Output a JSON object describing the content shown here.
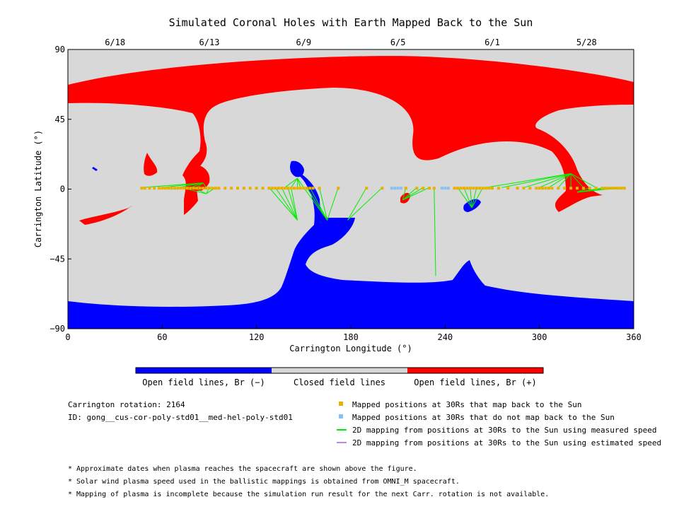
{
  "chart_data": {
    "type": "map",
    "title": "Simulated Coronal Holes with Earth Mapped Back to the Sun",
    "xlabel": "Carrington Longitude (°)",
    "ylabel": "Carrington Latitude (°)",
    "xlim": [
      0,
      360
    ],
    "ylim": [
      -90,
      90
    ],
    "x_ticks": [
      "0",
      "60",
      "120",
      "180",
      "240",
      "300",
      "360"
    ],
    "y_ticks": [
      "90",
      "45",
      "0",
      "-45",
      "-90"
    ],
    "top_date_ticks": [
      {
        "label": "6/18",
        "lon": 30
      },
      {
        "label": "6/13",
        "lon": 90
      },
      {
        "label": "6/9",
        "lon": 150
      },
      {
        "label": "6/5",
        "lon": 210
      },
      {
        "label": "6/1",
        "lon": 270
      },
      {
        "label": "5/28",
        "lon": 330
      }
    ],
    "colors": {
      "open_negative": "#0000ff",
      "closed": "#d8d8d8",
      "open_positive": "#ff0000",
      "mapped": "#e8b100",
      "unmapped": "#88c0f0",
      "measured_line": "#00ee00",
      "estimated_line": "#b88be0"
    },
    "colorbar": {
      "labels": [
        "Open field lines, Br (−)",
        "Closed field lines",
        "Open field lines, Br (+)"
      ]
    },
    "mapped_positions_lon": [
      47,
      49,
      52,
      55,
      58,
      60,
      62,
      64,
      66,
      68,
      70,
      72,
      74,
      76,
      78,
      80,
      82,
      84,
      86,
      88,
      90,
      92,
      94,
      96,
      100,
      104,
      108,
      112,
      116,
      120,
      124,
      128,
      130,
      132,
      134,
      136,
      138,
      140,
      142,
      144,
      146,
      148,
      150,
      152,
      154,
      156,
      160,
      172,
      190,
      200,
      215,
      222,
      226,
      230,
      233,
      246,
      248,
      250,
      252,
      254,
      256,
      258,
      260,
      262,
      264,
      266,
      268,
      270,
      274,
      280,
      286,
      290,
      294,
      298,
      300,
      302,
      304,
      306,
      308,
      312,
      316,
      320,
      324,
      328,
      332,
      336,
      340,
      342,
      344,
      346,
      348,
      350,
      352,
      354
    ],
    "unmapped_positions_lon": [
      206,
      208,
      210,
      212,
      238,
      240,
      242
    ],
    "measured_speed_mappings": [
      {
        "from": [
          47,
          1
        ],
        "to": [
          86,
          4
        ]
      },
      {
        "from": [
          60,
          1
        ],
        "to": [
          86,
          4
        ]
      },
      {
        "from": [
          70,
          1
        ],
        "to": [
          86,
          4
        ]
      },
      {
        "from": [
          78,
          1
        ],
        "to": [
          86,
          4
        ]
      },
      {
        "from": [
          82,
          1
        ],
        "to": [
          86,
          4
        ]
      },
      {
        "from": [
          88,
          1
        ],
        "to": [
          86,
          4
        ]
      },
      {
        "from": [
          72,
          1
        ],
        "to": [
          88,
          -3
        ]
      },
      {
        "from": [
          80,
          1
        ],
        "to": [
          88,
          -3
        ]
      },
      {
        "from": [
          90,
          1
        ],
        "to": [
          88,
          -3
        ]
      },
      {
        "from": [
          94,
          1
        ],
        "to": [
          88,
          -3
        ]
      },
      {
        "from": [
          128,
          1
        ],
        "to": [
          146,
          -20
        ]
      },
      {
        "from": [
          132,
          1
        ],
        "to": [
          146,
          -20
        ]
      },
      {
        "from": [
          136,
          1
        ],
        "to": [
          146,
          -20
        ]
      },
      {
        "from": [
          140,
          1
        ],
        "to": [
          146,
          -20
        ]
      },
      {
        "from": [
          142,
          1
        ],
        "to": [
          146,
          -20
        ]
      },
      {
        "from": [
          138,
          1
        ],
        "to": [
          146,
          7
        ]
      },
      {
        "from": [
          142,
          1
        ],
        "to": [
          146,
          7
        ]
      },
      {
        "from": [
          146,
          1
        ],
        "to": [
          146,
          7
        ]
      },
      {
        "from": [
          148,
          1
        ],
        "to": [
          146,
          7
        ]
      },
      {
        "from": [
          150,
          1
        ],
        "to": [
          146,
          7
        ]
      },
      {
        "from": [
          150,
          1
        ],
        "to": [
          165,
          -20
        ]
      },
      {
        "from": [
          152,
          1
        ],
        "to": [
          165,
          -20
        ]
      },
      {
        "from": [
          154,
          1
        ],
        "to": [
          165,
          -20
        ]
      },
      {
        "from": [
          160,
          1
        ],
        "to": [
          165,
          -20
        ]
      },
      {
        "from": [
          172,
          1
        ],
        "to": [
          165,
          -20
        ]
      },
      {
        "from": [
          190,
          1
        ],
        "to": [
          178,
          -20
        ]
      },
      {
        "from": [
          200,
          1
        ],
        "to": [
          178,
          -20
        ]
      },
      {
        "from": [
          215,
          1
        ],
        "to": [
          213,
          -7
        ]
      },
      {
        "from": [
          222,
          1
        ],
        "to": [
          213,
          -7
        ]
      },
      {
        "from": [
          226,
          1
        ],
        "to": [
          213,
          -7
        ]
      },
      {
        "from": [
          230,
          1
        ],
        "to": [
          213,
          -7
        ]
      },
      {
        "from": [
          233,
          1
        ],
        "to": [
          234,
          -56
        ]
      },
      {
        "from": [
          248,
          1
        ],
        "to": [
          257,
          -12
        ]
      },
      {
        "from": [
          252,
          1
        ],
        "to": [
          257,
          -12
        ]
      },
      {
        "from": [
          256,
          1
        ],
        "to": [
          257,
          -12
        ]
      },
      {
        "from": [
          260,
          1
        ],
        "to": [
          257,
          -12
        ]
      },
      {
        "from": [
          264,
          1
        ],
        "to": [
          257,
          -12
        ]
      },
      {
        "from": [
          266,
          1
        ],
        "to": [
          320,
          10
        ]
      },
      {
        "from": [
          276,
          1
        ],
        "to": [
          320,
          10
        ]
      },
      {
        "from": [
          290,
          1
        ],
        "to": [
          320,
          10
        ]
      },
      {
        "from": [
          300,
          1
        ],
        "to": [
          320,
          10
        ]
      },
      {
        "from": [
          306,
          1
        ],
        "to": [
          320,
          10
        ]
      },
      {
        "from": [
          312,
          1
        ],
        "to": [
          320,
          10
        ]
      },
      {
        "from": [
          320,
          1
        ],
        "to": [
          320,
          10
        ]
      },
      {
        "from": [
          328,
          1
        ],
        "to": [
          320,
          10
        ]
      },
      {
        "from": [
          336,
          1
        ],
        "to": [
          320,
          10
        ]
      },
      {
        "from": [
          342,
          1
        ],
        "to": [
          324,
          -2
        ]
      },
      {
        "from": [
          346,
          1
        ],
        "to": [
          324,
          -2
        ]
      },
      {
        "from": [
          350,
          1
        ],
        "to": [
          324,
          -2
        ]
      },
      {
        "from": [
          354,
          1
        ],
        "to": [
          324,
          -2
        ]
      },
      {
        "from": [
          332,
          1
        ],
        "to": [
          324,
          -2
        ]
      }
    ],
    "info": {
      "rotation": "Carrington rotation: 2164",
      "id": "ID: gong__cus-cor-poly-std01__med-hel-poly-std01"
    },
    "legend": [
      {
        "label": "Mapped positions at 30Rs that map back to the Sun",
        "kind": "square",
        "color": "#e8b100"
      },
      {
        "label": "Mapped positions at 30Rs that do not map back to the Sun",
        "kind": "square",
        "color": "#88c0f0"
      },
      {
        "label": "2D mapping from positions at 30Rs to the Sun using measured speed",
        "kind": "line",
        "color": "#00ee00"
      },
      {
        "label": "2D mapping from positions at 30Rs to the Sun using estimated speed",
        "kind": "line",
        "color": "#b88be0"
      }
    ],
    "notes": [
      "* Approximate dates when plasma reaches the spacecraft are shown above the figure.",
      "* Solar wind plasma speed used in the ballistic mappings is obtained from OMNI_M spacecraft.",
      "* Mapping of plasma is incomplete because the simulation run result for the next Carr. rotation is not available."
    ]
  }
}
